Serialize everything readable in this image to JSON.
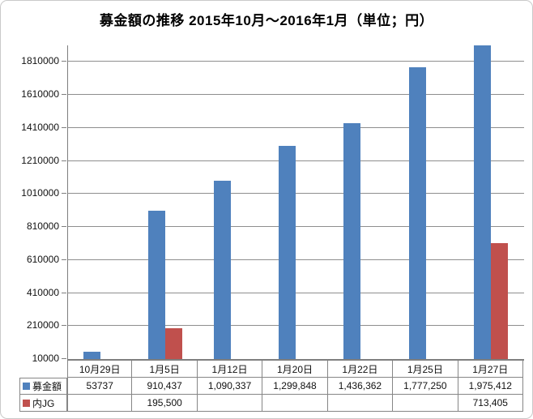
{
  "chart_data": {
    "type": "bar",
    "title": "募金額の推移  2015年10月～2016年1月（単位；円）",
    "categories": [
      "10月29日",
      "1月5日",
      "1月12日",
      "1月20日",
      "1月22日",
      "1月25日",
      "1月27日"
    ],
    "series": [
      {
        "name": "募金額",
        "color": "#4F81BD",
        "values": [
          53737,
          910437,
          1090337,
          1299848,
          1436362,
          1777250,
          1975412
        ],
        "labels": [
          "53737",
          "910,437",
          "1,090,337",
          "1,299,848",
          "1,436,362",
          "1,777,250",
          "1,975,412"
        ]
      },
      {
        "name": "内JG",
        "color": "#C0504D",
        "values": [
          null,
          195500,
          null,
          null,
          null,
          null,
          713405
        ],
        "labels": [
          "",
          "195,500",
          "",
          "",
          "",
          "",
          "713,405"
        ]
      }
    ],
    "y_axis": {
      "min": 10000,
      "max": 1910000,
      "tick_interval": 200000,
      "tick_labels": [
        "10000",
        "210000",
        "410000",
        "610000",
        "810000",
        "1010000",
        "1210000",
        "1410000",
        "1610000",
        "1810000"
      ]
    },
    "grid": true,
    "legend_position": "table-left",
    "colors": {
      "gridline": "#8e8e8e",
      "axis": "#7f7f7f",
      "table_border": "#868686",
      "text": "#111111"
    }
  }
}
